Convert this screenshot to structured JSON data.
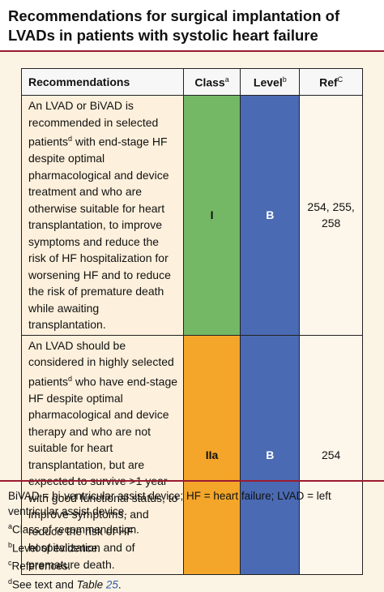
{
  "header": {
    "title": "Recommendations for surgical implantation of LVADs in patients with systolic heart failure"
  },
  "table": {
    "columns": [
      {
        "label": "Recommendations"
      },
      {
        "label": "Class",
        "sup": "a"
      },
      {
        "label": "Level",
        "sup": "b"
      },
      {
        "label": "Ref",
        "sup": "C"
      }
    ],
    "rows": [
      {
        "recommendation": {
          "before": "An LVAD or BiVAD is recommended in selected patients",
          "sup": "d",
          "after": " with end-stage HF despite optimal pharmacological and device treatment and who are otherwise suitable for heart transplantation, to improve symptoms and reduce the risk of HF hospitalization for worsening HF and to reduce the risk of premature death while awaiting transplantation."
        },
        "class": "I",
        "class_color": "#74b866",
        "level": "B",
        "level_color": "#4a6ab3",
        "ref": "254, 255, 258"
      },
      {
        "recommendation": {
          "before": "An LVAD should be considered in highly selected patients",
          "sup": "d",
          "after": " who have end-stage HF despite optimal pharmacological and device therapy and who are not suitable for heart transplantation, but are expected to survive >1 year with good functional status, to improve symptoms, and reduce the risk of HF hospitalization and of premature death."
        },
        "class": "IIa",
        "class_color": "#f4a62a",
        "level": "B",
        "level_color": "#4a6ab3",
        "ref": "254"
      }
    ]
  },
  "footnotes": {
    "abbreviations": "BiVAD = bi-ventricular assist device; HF = heart failure; LVAD = left ventricular assist device.",
    "notes": [
      {
        "marker": "a",
        "text": "Class of recommendation."
      },
      {
        "marker": "b",
        "text": "Level of evidence."
      },
      {
        "marker": "c",
        "text": "References."
      },
      {
        "marker": "d",
        "text": "See text and",
        "ref_label": "Table",
        "ref_number": "25",
        "end": "."
      }
    ]
  }
}
